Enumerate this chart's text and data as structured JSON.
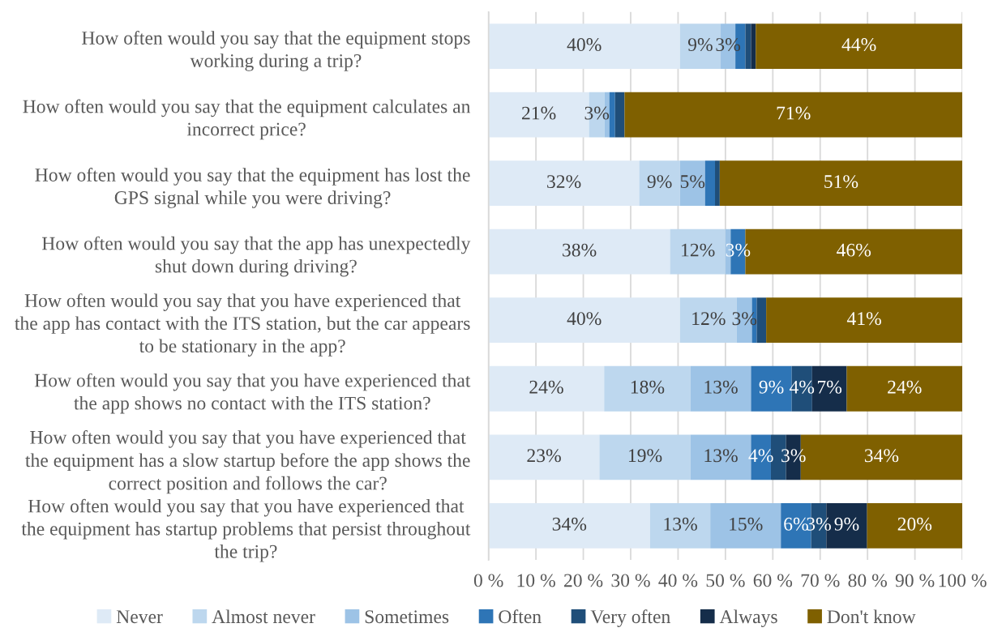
{
  "chart_data": {
    "type": "bar",
    "orientation": "horizontal",
    "stacked": true,
    "categories": [
      "How often would you say that the equipment stops\nworking during a trip?",
      "How often would you say that the equipment calculates an\nincorrect price?",
      "How often would you say that the equipment has lost the\nGPS signal while you were driving?",
      "How often would you say that the app has unexpectedly\nshut down during driving?",
      "How often would you say that you have experienced that\nthe app has contact with the ITS station, but the car appears\nto be stationary in the app?",
      "How often would you say that you have experienced that\nthe app shows no contact with the ITS station?",
      "How often would you say that you have experienced that\nthe equipment has a slow startup before the app shows the\ncorrect position and follows the car?",
      "How often would you say that you have experienced that\nthe equipment has startup problems that persist throughout\nthe trip?"
    ],
    "series": [
      {
        "name": "Never",
        "color": "#deeaf6",
        "values": [
          40.4,
          21.2,
          31.8,
          38.3,
          40.4,
          24.4,
          23.4,
          34.1
        ],
        "value_labels": [
          "40%",
          "21%",
          "32%",
          "38%",
          "40%",
          "24%",
          "23%",
          "34%"
        ]
      },
      {
        "name": "Almost never",
        "color": "#bdd7ee",
        "values": [
          8.6,
          3.3,
          8.6,
          11.7,
          12.0,
          18.2,
          19.2,
          12.7
        ],
        "value_labels": [
          "9%",
          "3%",
          "9%",
          "12%",
          "12%",
          "18%",
          "19%",
          "13%"
        ]
      },
      {
        "name": "Sometimes",
        "color": "#9dc3e6",
        "values": [
          3.1,
          1.0,
          5.3,
          1.1,
          3.2,
          12.8,
          12.8,
          14.9
        ],
        "value_labels": [
          "3%",
          null,
          "5%",
          null,
          "3%",
          "13%",
          "13%",
          "15%"
        ]
      },
      {
        "name": "Often",
        "color": "#2e75b6",
        "values": [
          2.1,
          1.2,
          2.1,
          3.1,
          1.0,
          8.6,
          4.2,
          6.4
        ],
        "value_labels": [
          null,
          null,
          null,
          "3%",
          null,
          "9%",
          "4%",
          "6%"
        ]
      },
      {
        "name": "Very often",
        "color": "#1f4e79",
        "values": [
          1.2,
          2.0,
          1.0,
          null,
          2.0,
          4.3,
          3.2,
          3.2
        ],
        "value_labels": [
          null,
          null,
          null,
          null,
          null,
          "4%",
          null,
          "3%"
        ]
      },
      {
        "name": "Always",
        "color": "#152d4a",
        "values": [
          1.0,
          null,
          null,
          null,
          null,
          7.3,
          3.1,
          8.6
        ],
        "value_labels": [
          null,
          null,
          null,
          null,
          null,
          "7%",
          "3%",
          "9%"
        ]
      },
      {
        "name": "Don't know",
        "color": "#7f6000",
        "values": [
          43.6,
          71.3,
          51.2,
          45.8,
          41.4,
          24.4,
          34.1,
          20.1
        ],
        "value_labels": [
          "44%",
          "71%",
          "51%",
          "46%",
          "41%",
          "24%",
          "34%",
          "20%"
        ]
      }
    ],
    "xlim": [
      0,
      100
    ],
    "xticks": [
      {
        "value": 0,
        "label": "0 %"
      },
      {
        "value": 10,
        "label": "10 %"
      },
      {
        "value": 20,
        "label": "20 %"
      },
      {
        "value": 30,
        "label": "30 %"
      },
      {
        "value": 40,
        "label": "40 %"
      },
      {
        "value": 50,
        "label": "50 %"
      },
      {
        "value": 60,
        "label": "60 %"
      },
      {
        "value": 70,
        "label": "70 %"
      },
      {
        "value": 80,
        "label": "80 %"
      },
      {
        "value": 90,
        "label": "90 %"
      },
      {
        "value": 100,
        "label": "100 %"
      }
    ],
    "grid": "x",
    "legend": "bottom"
  }
}
